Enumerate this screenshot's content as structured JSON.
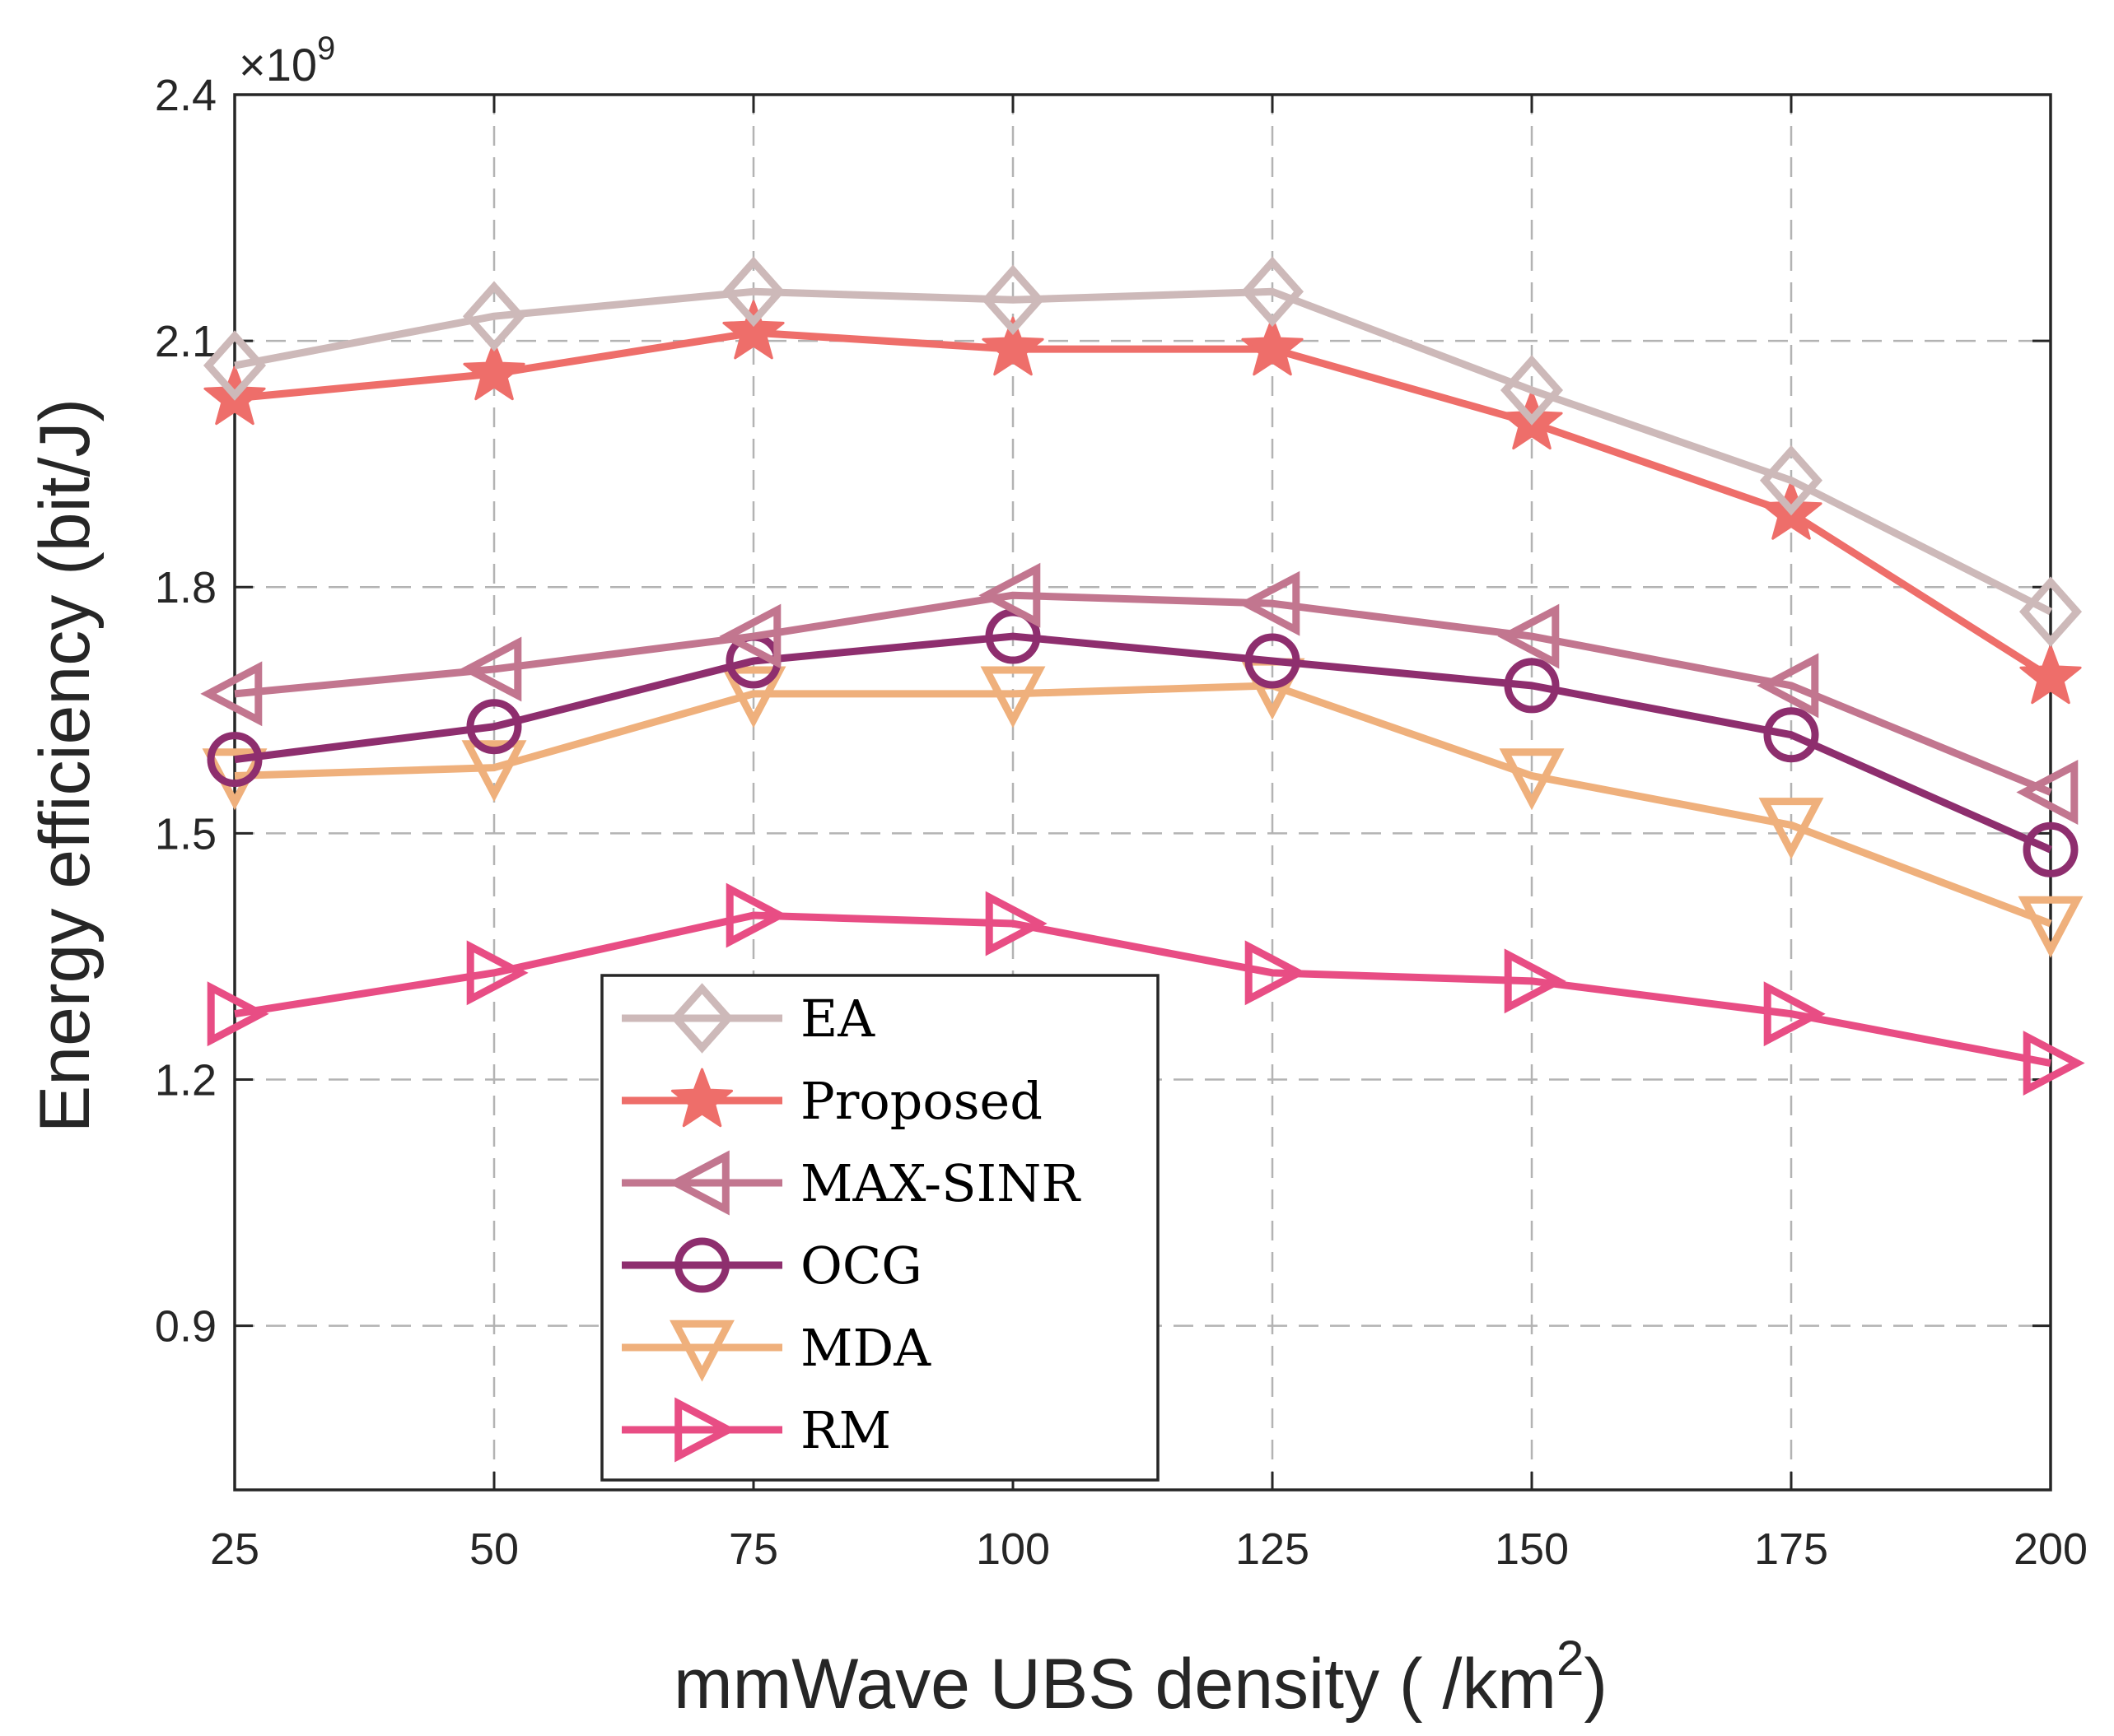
{
  "chart_data": {
    "type": "line",
    "title": "",
    "xlabel": "mmWave UBS density ( /km",
    "xlabel_sup": "2",
    "xlabel_close": ")",
    "ylabel": "Energy efficiency (bit/J)",
    "y_exponent_label": "×10",
    "y_exponent_sup": "9",
    "x": [
      25,
      50,
      75,
      100,
      125,
      150,
      175,
      200
    ],
    "xlim": [
      25,
      200
    ],
    "ylim": [
      0.7,
      2.4
    ],
    "xticks": [
      "25",
      "50",
      "75",
      "100",
      "125",
      "150",
      "175",
      "200"
    ],
    "yticks": [
      0.9,
      1.2,
      1.5,
      1.8,
      2.1,
      2.4
    ],
    "ytick_labels": [
      "0.9",
      "1.2",
      "1.5",
      "1.8",
      "2.1",
      "2.4"
    ],
    "grid": true,
    "legend_position": "lower-left",
    "series": [
      {
        "name": "EA",
        "marker": "diamond",
        "color": "#cdb9b9",
        "values": [
          2.07,
          2.13,
          2.16,
          2.15,
          2.16,
          2.04,
          1.93,
          1.77
        ]
      },
      {
        "name": "Proposed",
        "marker": "star",
        "color": "#ee6e6a",
        "values": [
          2.03,
          2.06,
          2.11,
          2.09,
          2.09,
          2.0,
          1.89,
          1.69
        ]
      },
      {
        "name": "MAX-SINR",
        "marker": "triangle-left",
        "color": "#c2768f",
        "values": [
          1.67,
          1.7,
          1.74,
          1.79,
          1.78,
          1.74,
          1.68,
          1.55
        ]
      },
      {
        "name": "OCG",
        "marker": "circle",
        "color": "#8e2e6e",
        "values": [
          1.59,
          1.63,
          1.71,
          1.74,
          1.71,
          1.68,
          1.62,
          1.48
        ]
      },
      {
        "name": "MDA",
        "marker": "triangle-down",
        "color": "#efb07c",
        "values": [
          1.57,
          1.58,
          1.67,
          1.67,
          1.68,
          1.57,
          1.51,
          1.39
        ]
      },
      {
        "name": "RM",
        "marker": "triangle-right",
        "color": "#e84d84",
        "values": [
          1.28,
          1.33,
          1.4,
          1.39,
          1.33,
          1.32,
          1.28,
          1.22
        ]
      }
    ]
  }
}
